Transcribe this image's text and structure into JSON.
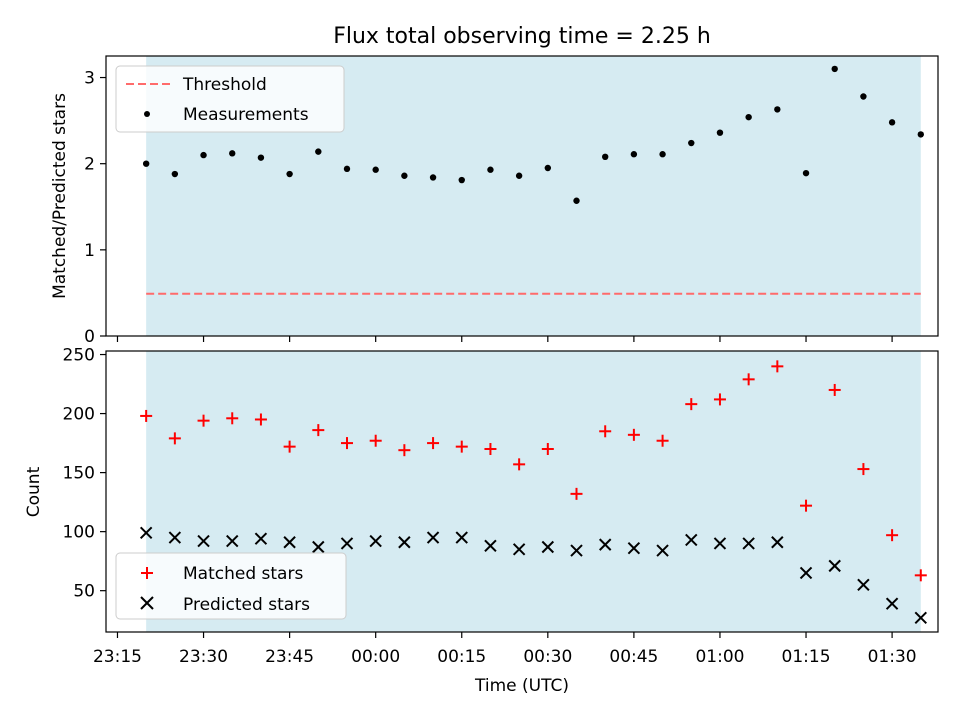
{
  "title": "Flux total observing time = 2.25 h",
  "xlabel": "Time (UTC)",
  "x_ticks": [
    "23:15",
    "23:30",
    "23:45",
    "00:00",
    "00:15",
    "00:30",
    "00:45",
    "01:00",
    "01:15",
    "01:30"
  ],
  "colors": {
    "shade": "#add8e6",
    "threshold": "#ff6b6b",
    "measurements": "#000000",
    "matched": "#ff0000",
    "predicted": "#000000"
  },
  "chart_data": [
    {
      "type": "scatter",
      "ylabel": "Matched/Predicted stars",
      "ylim": [
        0,
        3.25
      ],
      "y_ticks": [
        0,
        1,
        2,
        3
      ],
      "xlim": [
        "23:13",
        "01:38"
      ],
      "x": [
        "23:20",
        "23:25",
        "23:30",
        "23:35",
        "23:40",
        "23:45",
        "23:50",
        "23:55",
        "00:00",
        "00:05",
        "00:10",
        "00:15",
        "00:20",
        "00:25",
        "00:30",
        "00:35",
        "00:40",
        "00:45",
        "00:50",
        "00:55",
        "01:00",
        "01:05",
        "01:10",
        "01:15",
        "01:20",
        "01:25",
        "01:30",
        "01:35"
      ],
      "shaded_interval": [
        "23:20",
        "01:35"
      ],
      "threshold": {
        "name": "Threshold",
        "value": 0.49
      },
      "series": [
        {
          "name": "Measurements",
          "marker": "dot",
          "values": [
            2.0,
            1.88,
            2.1,
            2.12,
            2.07,
            1.88,
            2.14,
            1.94,
            1.93,
            1.86,
            1.84,
            1.81,
            1.93,
            1.86,
            1.95,
            1.57,
            2.08,
            2.11,
            2.11,
            2.24,
            2.36,
            2.54,
            2.63,
            1.89,
            3.1,
            2.78,
            2.48,
            2.34
          ]
        }
      ],
      "legend": "top-left",
      "grid": false
    },
    {
      "type": "scatter",
      "ylabel": "Count",
      "ylim": [
        15,
        253
      ],
      "y_ticks": [
        50,
        100,
        150,
        200,
        250
      ],
      "xlim": [
        "23:13",
        "01:38"
      ],
      "x": [
        "23:20",
        "23:25",
        "23:30",
        "23:35",
        "23:40",
        "23:45",
        "23:50",
        "23:55",
        "00:00",
        "00:05",
        "00:10",
        "00:15",
        "00:20",
        "00:25",
        "00:30",
        "00:35",
        "00:40",
        "00:45",
        "00:50",
        "00:55",
        "01:00",
        "01:05",
        "01:10",
        "01:15",
        "01:20",
        "01:25",
        "01:30",
        "01:35"
      ],
      "shaded_interval": [
        "23:20",
        "01:35"
      ],
      "series": [
        {
          "name": "Matched stars",
          "marker": "plus",
          "values": [
            198,
            179,
            194,
            196,
            195,
            172,
            186,
            175,
            177,
            169,
            175,
            172,
            170,
            157,
            170,
            132,
            185,
            182,
            177,
            208,
            212,
            229,
            240,
            122,
            220,
            153,
            97,
            63
          ]
        },
        {
          "name": "Predicted stars",
          "marker": "x",
          "values": [
            99,
            95,
            92,
            92,
            94,
            91,
            87,
            90,
            92,
            91,
            95,
            95,
            88,
            85,
            87,
            84,
            89,
            86,
            84,
            93,
            90,
            90,
            91,
            65,
            71,
            55,
            39,
            27
          ]
        }
      ],
      "legend": "bottom-left",
      "grid": false
    }
  ]
}
